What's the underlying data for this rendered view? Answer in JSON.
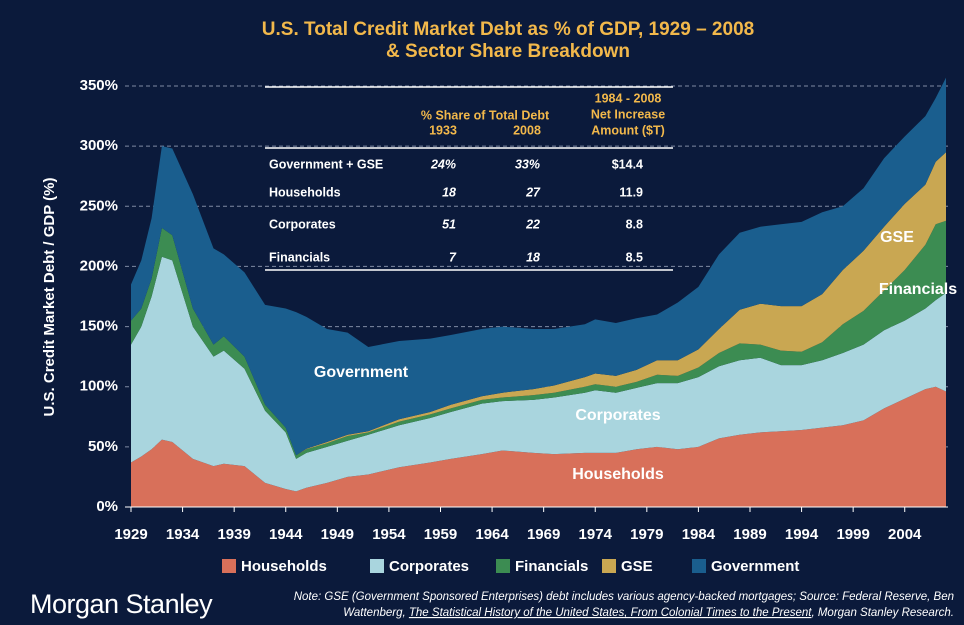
{
  "chart_data": {
    "type": "stacked_area",
    "title": [
      "U.S. Total Credit Market Debt as % of GDP, 1929 – 2008",
      "& Sector Share Breakdown"
    ],
    "y_label": "U.S. Credit Market Debt / GDP (%)",
    "x": [
      1929,
      1930,
      1931,
      1932,
      1933,
      1935,
      1937,
      1938,
      1940,
      1942,
      1944,
      1945,
      1946,
      1948,
      1950,
      1952,
      1955,
      1958,
      1960,
      1963,
      1965,
      1968,
      1970,
      1973,
      1974,
      1976,
      1978,
      1980,
      1982,
      1984,
      1986,
      1988,
      1990,
      1992,
      1994,
      1996,
      1998,
      2000,
      2002,
      2004,
      2006,
      2007,
      2008
    ],
    "xlim": [
      1929,
      2008
    ],
    "xticks": [
      1929,
      1934,
      1939,
      1944,
      1949,
      1954,
      1959,
      1964,
      1969,
      1974,
      1979,
      1984,
      1989,
      1994,
      1999,
      2004
    ],
    "ylim": [
      0,
      350
    ],
    "yticks": [
      {
        "value": 0,
        "label": "0%"
      },
      {
        "value": 50,
        "label": "50%"
      },
      {
        "value": 100,
        "label": "100%"
      },
      {
        "value": 150,
        "label": "150%"
      },
      {
        "value": 200,
        "label": "200%"
      },
      {
        "value": 250,
        "label": "250%"
      },
      {
        "value": 300,
        "label": "300%"
      },
      {
        "value": 350,
        "label": "350%"
      }
    ],
    "grid": true,
    "series": [
      {
        "name": "Households",
        "color": "#d8705a",
        "values": [
          37,
          42,
          48,
          56,
          54,
          40,
          34,
          36,
          34,
          20,
          15,
          13,
          16,
          20,
          25,
          27,
          33,
          37,
          40,
          44,
          47,
          45,
          44,
          45,
          45,
          45,
          48,
          50,
          48,
          50,
          57,
          60,
          62,
          63,
          64,
          66,
          68,
          72,
          82,
          90,
          98,
          100,
          96
        ]
      },
      {
        "name": "Corporates",
        "color": "#a9d5de",
        "values": [
          98,
          108,
          127,
          152,
          151,
          110,
          91,
          94,
          81,
          60,
          47,
          27,
          29,
          30,
          30,
          33,
          35,
          37,
          39,
          42,
          41,
          44,
          47,
          50,
          52,
          50,
          51,
          53,
          55,
          58,
          60,
          62,
          62,
          55,
          54,
          56,
          60,
          63,
          65,
          65,
          67,
          72,
          82
        ]
      },
      {
        "name": "Financials",
        "color": "#3c8c52",
        "values": [
          20,
          15,
          15,
          24,
          21,
          15,
          10,
          12,
          10,
          5,
          4,
          3,
          3,
          3,
          4,
          2,
          3,
          3,
          3,
          3,
          3,
          4,
          4,
          5,
          5,
          5,
          5,
          7,
          6,
          8,
          11,
          14,
          11,
          12,
          11,
          15,
          24,
          28,
          33,
          42,
          53,
          63,
          60
        ]
      },
      {
        "name": "GSE",
        "color": "#c9a752",
        "values": [
          0,
          0,
          0,
          0,
          0,
          0,
          0,
          0,
          0,
          0,
          0,
          0,
          0.5,
          1,
          1,
          1,
          2,
          2,
          3,
          3,
          4,
          5,
          6,
          8,
          9,
          9,
          10,
          12,
          13,
          15,
          20,
          28,
          34,
          37,
          38,
          40,
          45,
          50,
          53,
          55,
          50,
          52,
          57
        ]
      },
      {
        "name": "Government",
        "color": "#1a5e8e",
        "values": [
          30,
          40,
          50,
          68,
          72,
          95,
          80,
          68,
          70,
          83,
          99,
          119,
          109.5,
          94,
          85,
          70,
          65,
          61,
          58,
          56,
          55,
          50,
          47,
          44,
          45,
          44,
          43,
          38,
          48,
          52,
          62,
          64,
          64,
          68,
          70,
          68,
          53,
          52,
          57,
          56,
          57,
          53,
          62
        ]
      }
    ],
    "annotations": [
      "Government",
      "Corporates",
      "Households",
      "GSE",
      "Financials"
    ],
    "table": {
      "group_header": "% Share of Total Debt",
      "columns": [
        "1933",
        "2008"
      ],
      "right_header": [
        "1984 - 2008",
        "Net Increase",
        "Amount ($T)"
      ],
      "rows": [
        [
          "Government + GSE",
          "24%",
          "33%",
          "$14.4"
        ],
        [
          "Households",
          "18",
          "27",
          "11.9"
        ],
        [
          "Corporates",
          "51",
          "22",
          "8.8"
        ],
        [
          "Financials",
          "7",
          "18",
          "8.5"
        ]
      ]
    },
    "logo": "Morgan Stanley",
    "note": [
      "Note: GSE (Government Sponsored Enterprises) debt includes various agency-backed mortgages; Source: Federal Reserve, Ben",
      "Wattenberg, ",
      "The Statistical History of the United States, From Colonial Times to the Present",
      ", Morgan Stanley Research."
    ]
  }
}
